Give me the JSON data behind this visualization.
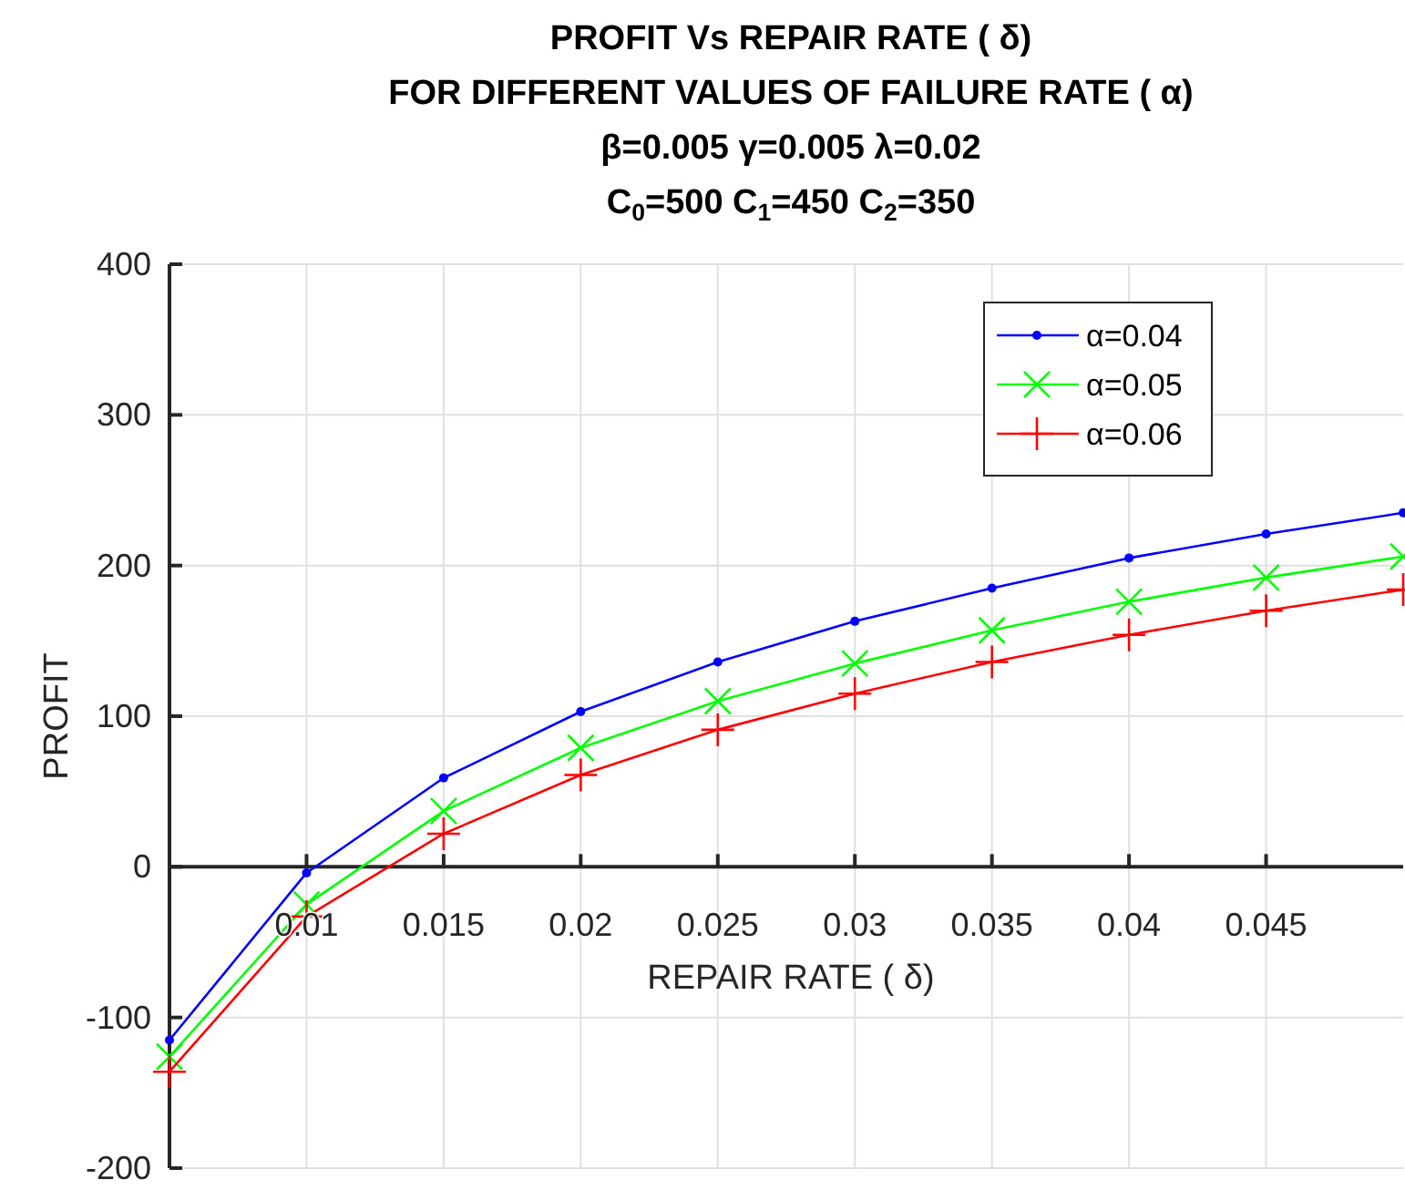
{
  "chart_data": {
    "type": "line",
    "title": "PROFIT Vs REPAIR RATE ( δ)\nFOR DIFFERENT VALUES OF FAILURE RATE ( α)\nβ=0.005 γ=0.005 λ=0.02\nC$_{0}$=500 C$_{1}$=450 C$_{2}$=350",
    "xlabel": "REPAIR RATE ( δ)",
    "ylabel": "PROFIT",
    "x": [
      0.005,
      0.01,
      0.015,
      0.02,
      0.025,
      0.03,
      0.035,
      0.04,
      0.045,
      0.05
    ],
    "series": [
      {
        "name": "α=0.04",
        "color": "#0000ff",
        "marker": "circle",
        "values": [
          -115,
          -4,
          59,
          103,
          136,
          163,
          185,
          205,
          221,
          235
        ]
      },
      {
        "name": "α=0.05",
        "color": "#00ff00",
        "marker": "cross",
        "values": [
          -126,
          -25,
          37,
          79,
          110,
          135,
          157,
          176,
          192,
          206
        ]
      },
      {
        "name": "α=0.06",
        "color": "#ff0000",
        "marker": "plus",
        "values": [
          -136,
          -33,
          22,
          61,
          91,
          115,
          136,
          154,
          170,
          184
        ]
      }
    ],
    "xlim": [
      0.005,
      0.05
    ],
    "xticks": [
      0.01,
      0.015,
      0.02,
      0.025,
      0.03,
      0.035,
      0.04,
      0.045
    ],
    "ylim": [
      -200,
      400
    ],
    "yticks": [
      -200,
      -100,
      0,
      100,
      200,
      300,
      400
    ],
    "grid": true,
    "legend": "top right",
    "line_style": "solid"
  }
}
